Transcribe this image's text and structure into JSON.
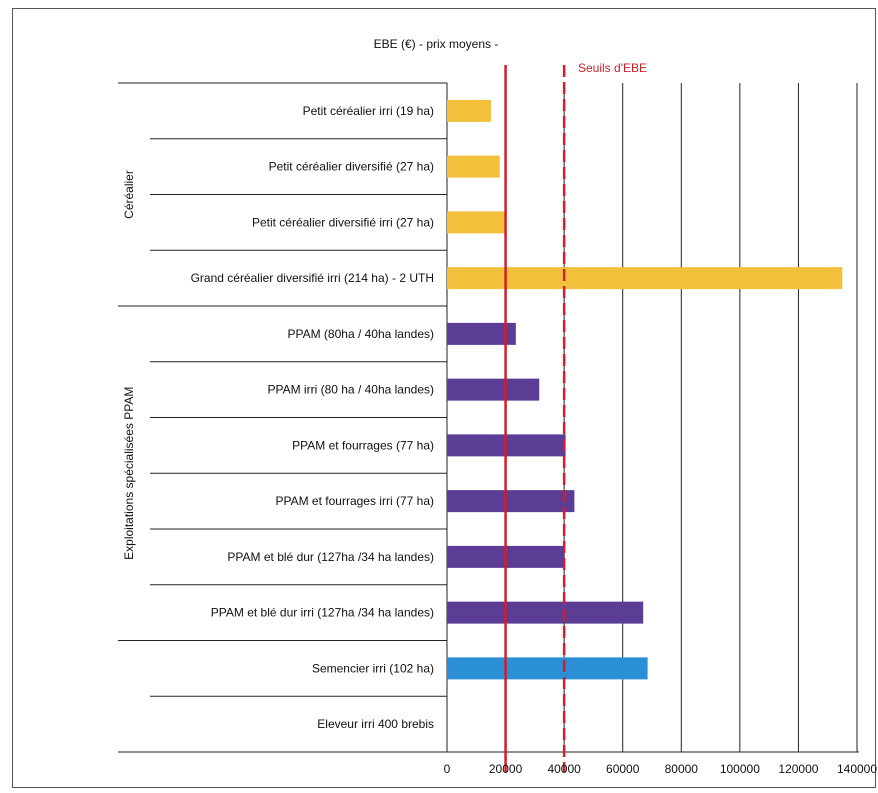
{
  "chart_data": {
    "type": "bar",
    "orientation": "horizontal",
    "title": "EBE (€) -  prix moyens -",
    "threshold_label": "Seuils d'EBE",
    "thresholds": [
      20000,
      40000
    ],
    "xlim": [
      0,
      140000
    ],
    "x_ticks": [
      0,
      20000,
      40000,
      60000,
      80000,
      100000,
      120000,
      140000
    ],
    "x_tick_labels": [
      "0",
      "20000",
      "40000",
      "60000",
      "80000",
      "100000",
      "120000",
      "140000"
    ],
    "grid": true,
    "groups": [
      {
        "label": "Céréalier",
        "categories": 4
      },
      {
        "label": "Exploitations spécialisées PPAM",
        "categories": 6
      }
    ],
    "categories": [
      "Petit céréalier irri (19 ha)",
      "Petit céréalier diversifié (27 ha)",
      "Petit céréalier diversifié irri (27 ha)",
      "Grand céréalier diversifié irri (214 ha) - 2 UTH",
      "PPAM (80ha / 40ha landes)",
      "PPAM irri (80 ha / 40ha landes)",
      "PPAM et fourrages (77 ha)",
      "PPAM et fourrages irri (77 ha)",
      "PPAM et blé dur (127ha /34 ha landes)",
      "PPAM et blé dur irri (127ha /34 ha landes)",
      "Semencier irri (102 ha)",
      "Eleveur irri 400 brebis"
    ],
    "values": [
      15000,
      18000,
      20000,
      135000,
      23500,
      31500,
      40500,
      43500,
      40000,
      67000,
      68500,
      0
    ],
    "bar_colors": [
      "#f2c03a",
      "#f2c03a",
      "#f2c03a",
      "#f2c03a",
      "#5b3d96",
      "#5b3d96",
      "#5b3d96",
      "#5b3d96",
      "#5b3d96",
      "#5b3d96",
      "#2b8fd6",
      "#2b8fd6"
    ],
    "threshold_color": "#d01f2a"
  }
}
